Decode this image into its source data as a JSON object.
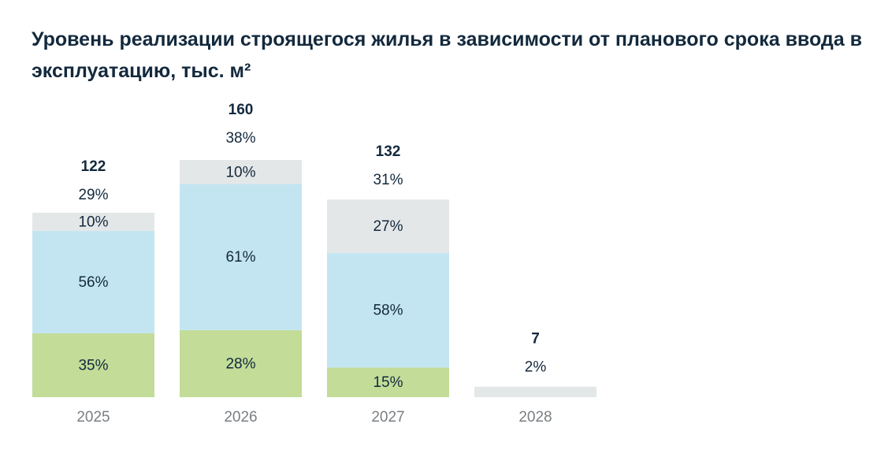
{
  "chart_data": {
    "type": "bar",
    "title": "Уровень реализации строящегося жилья в зависимости от планового срока ввода в эксплуатацию, тыс. м²",
    "categories": [
      "2025",
      "2026",
      "2027",
      "2028"
    ],
    "totals": [
      122,
      160,
      132,
      7
    ],
    "shares": {
      "values": [
        29,
        38,
        31,
        2
      ],
      "value_labels": [
        "29%",
        "38%",
        "31%",
        "2%"
      ]
    },
    "series": [
      {
        "color": "#c3dc98",
        "values": [
          35,
          28,
          15,
          null
        ],
        "value_labels": [
          "35%",
          "28%",
          "15%",
          null
        ]
      },
      {
        "color": "#c3e5f1",
        "values": [
          56,
          61,
          58,
          null
        ],
        "value_labels": [
          "56%",
          "61%",
          "58%",
          null
        ]
      },
      {
        "color": "#e4e7e8",
        "values": [
          10,
          10,
          27,
          100
        ],
        "value_labels": [
          "10%",
          "10%",
          "27%",
          null
        ]
      }
    ]
  }
}
